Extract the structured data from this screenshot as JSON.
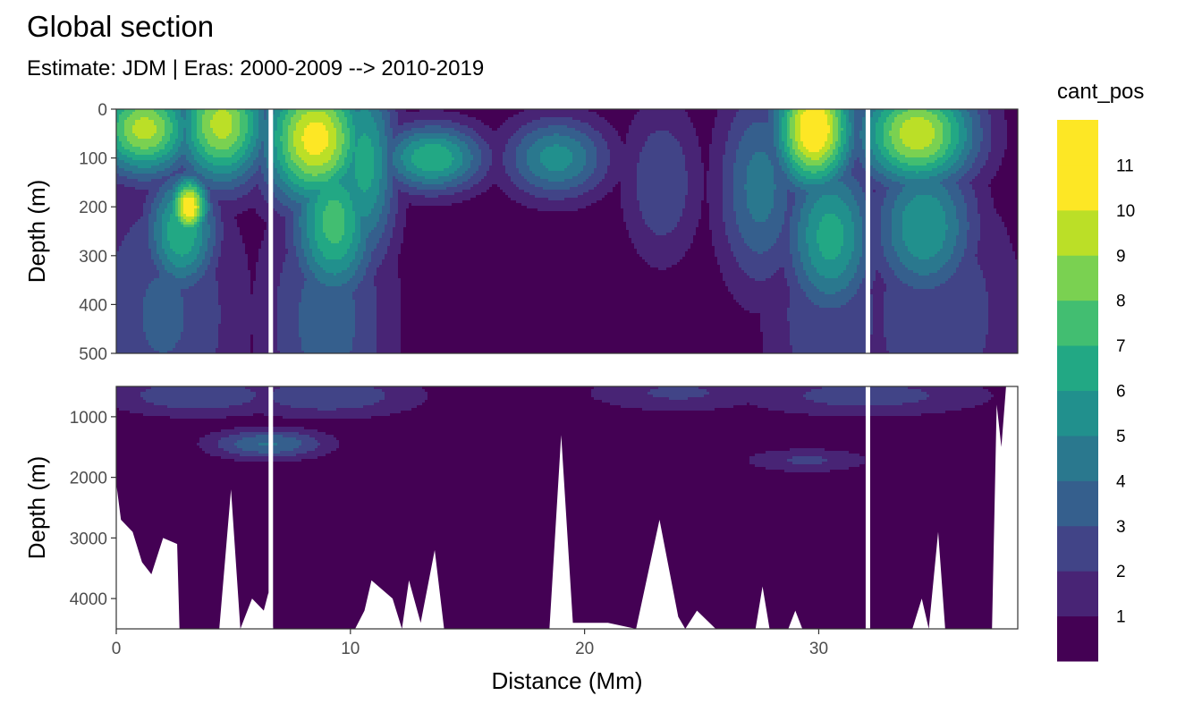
{
  "chart_data": {
    "type": "heatmap",
    "title": "Global section",
    "subtitle": "Estimate: JDM  | Eras: 2000-2009 --> 2010-2019",
    "xlabel": "Distance (Mm)",
    "ylabel": "Depth (m)",
    "x_range": [
      0,
      38.5
    ],
    "x_ticks": [
      0,
      10,
      20,
      30
    ],
    "colorscale": {
      "title": "cant_pos",
      "levels": [
        0,
        1,
        2,
        3,
        4,
        5,
        6,
        7,
        8,
        9,
        10,
        11,
        12
      ],
      "tick_labels": [
        1,
        2,
        3,
        4,
        5,
        6,
        7,
        8,
        9,
        10,
        11
      ],
      "colors": [
        "#440154",
        "#482475",
        "#414487",
        "#355F8D",
        "#2A788E",
        "#21908D",
        "#22A884",
        "#42BE71",
        "#7AD151",
        "#BBDF27",
        "#FDE725",
        "#FDE725"
      ]
    },
    "panels": [
      {
        "name": "upper",
        "ylim": [
          500,
          0
        ],
        "y_ticks": [
          0,
          100,
          200,
          300,
          400,
          500
        ],
        "gaps_x": [
          6.6,
          32.1
        ],
        "features": [
          {
            "x": 1.2,
            "depth": 40,
            "value": 9.5,
            "sx": 1.5,
            "sz": 70
          },
          {
            "x": 3.1,
            "depth": 200,
            "value": 11.2,
            "sx": 0.6,
            "sz": 45
          },
          {
            "x": 2.8,
            "depth": 250,
            "value": 7.0,
            "sx": 1.1,
            "sz": 90
          },
          {
            "x": 4.5,
            "depth": 30,
            "value": 9.5,
            "sx": 1.4,
            "sz": 90
          },
          {
            "x": 8.5,
            "depth": 60,
            "value": 10.6,
            "sx": 1.6,
            "sz": 100
          },
          {
            "x": 9.3,
            "depth": 230,
            "value": 7.5,
            "sx": 1.3,
            "sz": 120
          },
          {
            "x": 10.6,
            "depth": 110,
            "value": 6.5,
            "sx": 1.0,
            "sz": 150
          },
          {
            "x": 13.5,
            "depth": 100,
            "value": 7.0,
            "sx": 1.6,
            "sz": 50
          },
          {
            "x": 18.8,
            "depth": 100,
            "value": 5.5,
            "sx": 1.6,
            "sz": 60
          },
          {
            "x": 23.3,
            "depth": 150,
            "value": 3.0,
            "sx": 1.2,
            "sz": 120
          },
          {
            "x": 27.5,
            "depth": 160,
            "value": 4.5,
            "sx": 1.3,
            "sz": 150
          },
          {
            "x": 29.8,
            "depth": 40,
            "value": 11.5,
            "sx": 1.2,
            "sz": 90
          },
          {
            "x": 30.5,
            "depth": 260,
            "value": 6.5,
            "sx": 1.4,
            "sz": 120
          },
          {
            "x": 34.2,
            "depth": 50,
            "value": 9.8,
            "sx": 1.8,
            "sz": 80
          },
          {
            "x": 34.5,
            "depth": 240,
            "value": 6.0,
            "sx": 1.6,
            "sz": 110
          },
          {
            "x": 2.0,
            "depth": 420,
            "value": 3.2,
            "sx": 2.5,
            "sz": 220
          },
          {
            "x": 9.0,
            "depth": 430,
            "value": 3.6,
            "sx": 2.0,
            "sz": 200
          },
          {
            "x": 30.5,
            "depth": 420,
            "value": 3.0,
            "sx": 2.0,
            "sz": 200
          },
          {
            "x": 35.0,
            "depth": 420,
            "value": 3.0,
            "sx": 2.5,
            "sz": 200
          }
        ]
      },
      {
        "name": "lower",
        "ylim": [
          4500,
          500
        ],
        "y_ticks": [
          1000,
          2000,
          3000,
          4000
        ],
        "gaps_x": [
          6.6,
          32.1
        ],
        "features": [
          {
            "x": 3.5,
            "depth": 650,
            "value": 2.8,
            "sx": 3.0,
            "sz": 260
          },
          {
            "x": 9.0,
            "depth": 650,
            "value": 2.8,
            "sx": 3.0,
            "sz": 280
          },
          {
            "x": 6.5,
            "depth": 1450,
            "value": 4.1,
            "sx": 1.8,
            "sz": 180
          },
          {
            "x": 24.0,
            "depth": 600,
            "value": 2.2,
            "sx": 3.0,
            "sz": 240
          },
          {
            "x": 32.0,
            "depth": 650,
            "value": 2.5,
            "sx": 4.0,
            "sz": 260
          },
          {
            "x": 29.5,
            "depth": 1720,
            "value": 2.2,
            "sx": 2.0,
            "sz": 150
          }
        ],
        "seafloor": [
          {
            "x": 0.0,
            "depth": 2100
          },
          {
            "x": 0.2,
            "depth": 2700
          },
          {
            "x": 0.7,
            "depth": 2900
          },
          {
            "x": 1.1,
            "depth": 3400
          },
          {
            "x": 1.5,
            "depth": 3600
          },
          {
            "x": 2.0,
            "depth": 3000
          },
          {
            "x": 2.6,
            "depth": 3100
          },
          {
            "x": 2.7,
            "depth": 4500
          },
          {
            "x": 4.4,
            "depth": 4500
          },
          {
            "x": 4.9,
            "depth": 2200
          },
          {
            "x": 5.3,
            "depth": 4500
          },
          {
            "x": 5.8,
            "depth": 4000
          },
          {
            "x": 6.3,
            "depth": 4200
          },
          {
            "x": 6.5,
            "depth": 3900
          },
          {
            "x": 6.7,
            "depth": 4500
          },
          {
            "x": 10.2,
            "depth": 4500
          },
          {
            "x": 10.6,
            "depth": 4200
          },
          {
            "x": 10.9,
            "depth": 3700
          },
          {
            "x": 11.8,
            "depth": 4000
          },
          {
            "x": 12.2,
            "depth": 4500
          },
          {
            "x": 12.5,
            "depth": 3700
          },
          {
            "x": 13.0,
            "depth": 4400
          },
          {
            "x": 13.6,
            "depth": 3200
          },
          {
            "x": 14.0,
            "depth": 4500
          },
          {
            "x": 18.5,
            "depth": 4500
          },
          {
            "x": 19.0,
            "depth": 1300
          },
          {
            "x": 19.5,
            "depth": 4400
          },
          {
            "x": 21.0,
            "depth": 4400
          },
          {
            "x": 22.2,
            "depth": 4500
          },
          {
            "x": 23.2,
            "depth": 2700
          },
          {
            "x": 24.0,
            "depth": 4300
          },
          {
            "x": 24.3,
            "depth": 4500
          },
          {
            "x": 24.8,
            "depth": 4200
          },
          {
            "x": 25.6,
            "depth": 4500
          },
          {
            "x": 27.3,
            "depth": 4500
          },
          {
            "x": 27.6,
            "depth": 3800
          },
          {
            "x": 27.9,
            "depth": 4500
          },
          {
            "x": 28.7,
            "depth": 4500
          },
          {
            "x": 29.0,
            "depth": 4200
          },
          {
            "x": 29.3,
            "depth": 4500
          },
          {
            "x": 34.0,
            "depth": 4500
          },
          {
            "x": 34.4,
            "depth": 4000
          },
          {
            "x": 34.7,
            "depth": 4500
          },
          {
            "x": 35.1,
            "depth": 2900
          },
          {
            "x": 35.4,
            "depth": 4500
          },
          {
            "x": 37.4,
            "depth": 4500
          },
          {
            "x": 37.6,
            "depth": 800
          },
          {
            "x": 37.8,
            "depth": 1500
          },
          {
            "x": 38.0,
            "depth": 500
          },
          {
            "x": 38.5,
            "depth": 500
          }
        ]
      }
    ]
  }
}
